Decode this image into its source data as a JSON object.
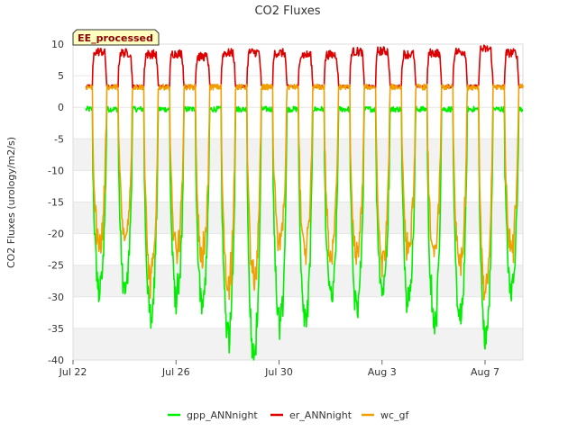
{
  "chart_data": {
    "type": "line",
    "title": "CO2 Fluxes",
    "ylabel": "CO2 Fluxes (urology/m2/s)",
    "xlabel": "",
    "badge": "EE_processed",
    "ylim": [
      -40,
      10
    ],
    "y_ticks": [
      10,
      5,
      0,
      -5,
      -10,
      -15,
      -20,
      -25,
      -30,
      -35,
      -40
    ],
    "xlim": [
      "2024-07-22",
      "2024-08-09"
    ],
    "x_ticks": [
      {
        "date": "2024-07-22",
        "label": "Jul 22"
      },
      {
        "date": "2024-07-26",
        "label": "Jul 26"
      },
      {
        "date": "2024-07-30",
        "label": "Jul 30"
      },
      {
        "date": "2024-08-03",
        "label": "Aug 3"
      },
      {
        "date": "2024-08-07",
        "label": "Aug 7"
      }
    ],
    "grid": "horizontal bands",
    "legend_position": "bottom",
    "series": [
      {
        "name": "gpp_ANNnight",
        "color": "#00ee00",
        "daily_min": [
          -29,
          -29.5,
          -33,
          -31,
          -31,
          -36,
          -39.5,
          -34,
          -34,
          -31,
          -32,
          -29,
          -30,
          -34,
          -34,
          -36.5,
          -29
        ],
        "night_value": -0.3
      },
      {
        "name": "er_ANNnight",
        "color": "#dd0000",
        "daily_max": [
          8.8,
          8.6,
          8.4,
          8.5,
          8.0,
          8.6,
          8.7,
          8.6,
          8.3,
          8.3,
          8.8,
          8.9,
          8.4,
          8.6,
          8.8,
          9.2,
          8.6
        ],
        "night_value": 3.3
      },
      {
        "name": "wc_gf",
        "color": "#f0a000",
        "daily_min": [
          -22,
          -21,
          -27.5,
          -23.5,
          -24,
          -28.5,
          -28,
          -22,
          -24,
          -23.5,
          -24,
          -24.5,
          -22,
          -24,
          -25,
          -29,
          -22
        ],
        "night_value": 3.2
      }
    ],
    "data_note_days": 17
  }
}
